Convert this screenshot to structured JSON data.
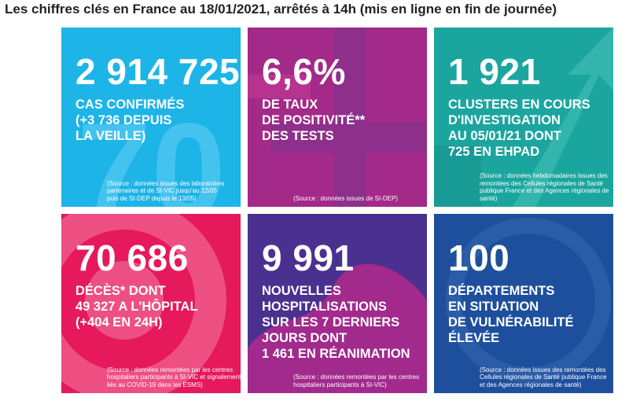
{
  "header": {
    "title": "Les chiffres clés en France au 18/01/2021, arrêtés à 14h (mis en ligne en fin de journée)"
  },
  "tiles": [
    {
      "number": "2 914 725",
      "lines": [
        "CAS CONFIRMÉS",
        "(+3 736 DEPUIS",
        "LA VEILLE)"
      ],
      "source": [
        "(Source : données issues des laboratoires",
        "partenaires et de SI-VIC jusqu'au 12/05",
        "puis de SI-DEP depuis le 13/05)"
      ]
    },
    {
      "number": "6,6%",
      "lines": [
        "DE TAUX",
        "DE POSITIVITÉ**",
        "DES TESTS"
      ],
      "source": [
        "(Source : données issues de SI-DEP)"
      ]
    },
    {
      "number": "1 921",
      "lines": [
        "CLUSTERS EN COURS",
        "D'INVESTIGATION",
        "AU 05/01/21 DONT",
        "725 EN EHPAD"
      ],
      "source": [
        "(Source : données hebdomadaires issues des",
        "remontées des Cellules régionales de Santé",
        "publique France et des Agences régionales de",
        "santé)"
      ]
    },
    {
      "number": "70 686",
      "lines": [
        "DÉCÈS* DONT",
        "49 327 A L'HÔPITAL",
        "(+404 EN 24H)"
      ],
      "source": [
        "(Source : données remontées par les centres",
        "hospitaliers participants à SI-VIC et signalements",
        "liés au COVID-19 dans les ESMS)"
      ]
    },
    {
      "number": "9 991",
      "lines": [
        "NOUVELLES",
        "HOSPITALISATIONS",
        "SUR LES 7 DERNIERS",
        "JOURS DONT",
        "1 461 EN RÉANIMATION"
      ],
      "source": [
        "(Source : données remontées par les centres",
        "hospitaliers participants à SI-VIC)"
      ]
    },
    {
      "number": "100",
      "lines": [
        "DÉPARTEMENTS",
        "EN SITUATION",
        "DE VULNÉRABILITÉ",
        "ÉLEVÉE"
      ],
      "source": [
        "(Source : données issues des remontées des",
        "Cellules régionales de Santé publique France",
        "et des Agences régionales de santé)"
      ]
    }
  ]
}
